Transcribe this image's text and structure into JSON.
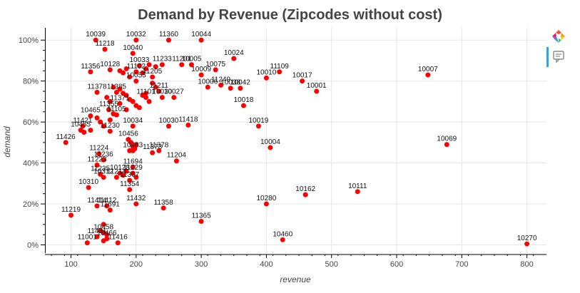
{
  "chart_data": {
    "type": "scatter",
    "title": "Demand by Revenue (Zipcodes without cost)",
    "xlabel": "revenue",
    "ylabel": "demand",
    "xlim": [
      60,
      830
    ],
    "ylim": [
      -0.04,
      1.06
    ],
    "xticks": [
      100,
      200,
      300,
      400,
      500,
      600,
      700,
      800
    ],
    "xtick_labels": [
      "100",
      "200",
      "300",
      "400",
      "500",
      "600",
      "700",
      "800"
    ],
    "yticks": [
      0,
      0.2,
      0.4,
      0.6,
      0.8,
      1.0
    ],
    "ytick_labels": [
      "0%",
      "20%",
      "40%",
      "60%",
      "80%",
      "100%"
    ],
    "grid": true,
    "point_color": "#ff0000",
    "points": [
      {
        "label": "10039",
        "x": 138,
        "y": 1.0
      },
      {
        "label": "10032",
        "x": 200,
        "y": 1.0
      },
      {
        "label": "11360",
        "x": 250,
        "y": 1.0
      },
      {
        "label": "10044",
        "x": 300,
        "y": 1.0
      },
      {
        "label": "11218",
        "x": 152,
        "y": 0.955
      },
      {
        "label": "10040",
        "x": 195,
        "y": 0.935
      },
      {
        "label": "10024",
        "x": 350,
        "y": 0.91
      },
      {
        "label": "10033",
        "x": 205,
        "y": 0.875
      },
      {
        "label": "11233",
        "x": 240,
        "y": 0.88
      },
      {
        "label": "11201",
        "x": 270,
        "y": 0.88
      },
      {
        "label": "10005",
        "x": 285,
        "y": 0.88
      },
      {
        "label": "10075",
        "x": 322,
        "y": 0.855
      },
      {
        "label": "11356",
        "x": 130,
        "y": 0.845
      },
      {
        "label": "10128",
        "x": 160,
        "y": 0.855
      },
      {
        "label": "11102",
        "x": 200,
        "y": 0.845
      },
      {
        "label": "10009",
        "x": 300,
        "y": 0.83
      },
      {
        "label": "11109",
        "x": 420,
        "y": 0.845
      },
      {
        "label": "10007",
        "x": 648,
        "y": 0.83
      },
      {
        "label": "10017",
        "x": 455,
        "y": 0.8
      },
      {
        "label": "10010",
        "x": 400,
        "y": 0.815
      },
      {
        "label": "11205",
        "x": 225,
        "y": 0.82
      },
      {
        "label": "11249",
        "x": 330,
        "y": 0.78
      },
      {
        "label": "10038",
        "x": 345,
        "y": 0.765
      },
      {
        "label": "10006",
        "x": 310,
        "y": 0.77
      },
      {
        "label": "10042",
        "x": 360,
        "y": 0.765
      },
      {
        "label": "10001",
        "x": 477,
        "y": 0.75
      },
      {
        "label": "10055",
        "x": 200,
        "y": 0.8
      },
      {
        "label": "11378",
        "x": 140,
        "y": 0.745
      },
      {
        "label": "11385",
        "x": 170,
        "y": 0.745
      },
      {
        "label": "11211",
        "x": 235,
        "y": 0.75
      },
      {
        "label": "10027",
        "x": 258,
        "y": 0.72
      },
      {
        "label": "10030",
        "x": 240,
        "y": 0.72
      },
      {
        "label": "10018",
        "x": 365,
        "y": 0.68
      },
      {
        "label": "11101",
        "x": 215,
        "y": 0.72
      },
      {
        "label": "11371",
        "x": 175,
        "y": 0.69
      },
      {
        "label": "10465",
        "x": 130,
        "y": 0.63
      },
      {
        "label": "11355",
        "x": 158,
        "y": 0.66
      },
      {
        "label": "11105",
        "x": 170,
        "y": 0.635
      },
      {
        "label": "10030",
        "x": 250,
        "y": 0.58
      },
      {
        "label": "11418",
        "x": 280,
        "y": 0.585
      },
      {
        "label": "10034",
        "x": 195,
        "y": 0.58
      },
      {
        "label": "10019",
        "x": 388,
        "y": 0.58
      },
      {
        "label": "11421",
        "x": 118,
        "y": 0.58
      },
      {
        "label": "10455",
        "x": 115,
        "y": 0.56
      },
      {
        "label": "11230",
        "x": 160,
        "y": 0.555
      },
      {
        "label": "11426",
        "x": 92,
        "y": 0.5
      },
      {
        "label": "10456",
        "x": 188,
        "y": 0.515
      },
      {
        "label": "10069",
        "x": 677,
        "y": 0.49
      },
      {
        "label": "10004",
        "x": 406,
        "y": 0.475
      },
      {
        "label": "11378",
        "x": 235,
        "y": 0.46
      },
      {
        "label": "11373",
        "x": 225,
        "y": 0.45
      },
      {
        "label": "10463",
        "x": 195,
        "y": 0.46
      },
      {
        "label": "11224",
        "x": 143,
        "y": 0.445
      },
      {
        "label": "11236",
        "x": 150,
        "y": 0.415
      },
      {
        "label": "11204",
        "x": 262,
        "y": 0.41
      },
      {
        "label": "11223",
        "x": 140,
        "y": 0.39
      },
      {
        "label": "11694",
        "x": 195,
        "y": 0.38
      },
      {
        "label": "11235",
        "x": 145,
        "y": 0.345
      },
      {
        "label": "10128",
        "x": 175,
        "y": 0.35
      },
      {
        "label": "11229",
        "x": 195,
        "y": 0.35
      },
      {
        "label": "10312",
        "x": 150,
        "y": 0.33
      },
      {
        "label": "11214",
        "x": 170,
        "y": 0.33
      },
      {
        "label": "11367",
        "x": 190,
        "y": 0.315
      },
      {
        "label": "10310",
        "x": 127,
        "y": 0.28
      },
      {
        "label": "11354",
        "x": 190,
        "y": 0.27
      },
      {
        "label": "10111",
        "x": 540,
        "y": 0.26
      },
      {
        "label": "10162",
        "x": 460,
        "y": 0.245
      },
      {
        "label": "11432",
        "x": 200,
        "y": 0.2
      },
      {
        "label": "10280",
        "x": 400,
        "y": 0.2
      },
      {
        "label": "11414",
        "x": 140,
        "y": 0.19
      },
      {
        "label": "11412",
        "x": 155,
        "y": 0.19
      },
      {
        "label": "11691",
        "x": 160,
        "y": 0.17
      },
      {
        "label": "11358",
        "x": 242,
        "y": 0.18
      },
      {
        "label": "11219",
        "x": 100,
        "y": 0.145
      },
      {
        "label": "11365",
        "x": 300,
        "y": 0.115
      },
      {
        "label": "10458",
        "x": 150,
        "y": 0.06
      },
      {
        "label": "11431",
        "x": 140,
        "y": 0.04
      },
      {
        "label": "10466",
        "x": 155,
        "y": 0.03
      },
      {
        "label": "11416",
        "x": 172,
        "y": 0.01
      },
      {
        "label": "11001",
        "x": 125,
        "y": 0.01
      },
      {
        "label": "10460",
        "x": 425,
        "y": 0.025
      },
      {
        "label": "10270",
        "x": 800,
        "y": 0.005
      }
    ],
    "extra_points": [
      {
        "x": 140,
        "y": 0.62
      },
      {
        "x": 145,
        "y": 0.6
      },
      {
        "x": 150,
        "y": 0.58
      },
      {
        "x": 165,
        "y": 0.77
      },
      {
        "x": 175,
        "y": 0.76
      },
      {
        "x": 180,
        "y": 0.74
      },
      {
        "x": 185,
        "y": 0.73
      },
      {
        "x": 190,
        "y": 0.71
      },
      {
        "x": 195,
        "y": 0.7
      },
      {
        "x": 200,
        "y": 0.68
      },
      {
        "x": 205,
        "y": 0.67
      },
      {
        "x": 210,
        "y": 0.73
      },
      {
        "x": 215,
        "y": 0.74
      },
      {
        "x": 220,
        "y": 0.7
      },
      {
        "x": 185,
        "y": 0.66
      },
      {
        "x": 180,
        "y": 0.84
      },
      {
        "x": 185,
        "y": 0.86
      },
      {
        "x": 175,
        "y": 0.85
      },
      {
        "x": 190,
        "y": 0.82
      },
      {
        "x": 210,
        "y": 0.84
      },
      {
        "x": 215,
        "y": 0.86
      },
      {
        "x": 220,
        "y": 0.88
      },
      {
        "x": 230,
        "y": 0.87
      },
      {
        "x": 225,
        "y": 0.79
      },
      {
        "x": 230,
        "y": 0.77
      },
      {
        "x": 195,
        "y": 0.48
      },
      {
        "x": 192,
        "y": 0.5
      },
      {
        "x": 198,
        "y": 0.47
      },
      {
        "x": 200,
        "y": 0.49
      },
      {
        "x": 190,
        "y": 0.46
      },
      {
        "x": 185,
        "y": 0.36
      },
      {
        "x": 180,
        "y": 0.34
      },
      {
        "x": 200,
        "y": 0.33
      },
      {
        "x": 150,
        "y": 0.1
      },
      {
        "x": 150,
        "y": 0.02
      },
      {
        "x": 155,
        "y": 0.05
      },
      {
        "x": 145,
        "y": 0.07
      },
      {
        "x": 120,
        "y": 0.55
      },
      {
        "x": 130,
        "y": 0.56
      },
      {
        "x": 155,
        "y": 0.72
      },
      {
        "x": 160,
        "y": 0.7
      },
      {
        "x": 165,
        "y": 0.64
      },
      {
        "x": 160,
        "y": 0.61
      }
    ]
  }
}
